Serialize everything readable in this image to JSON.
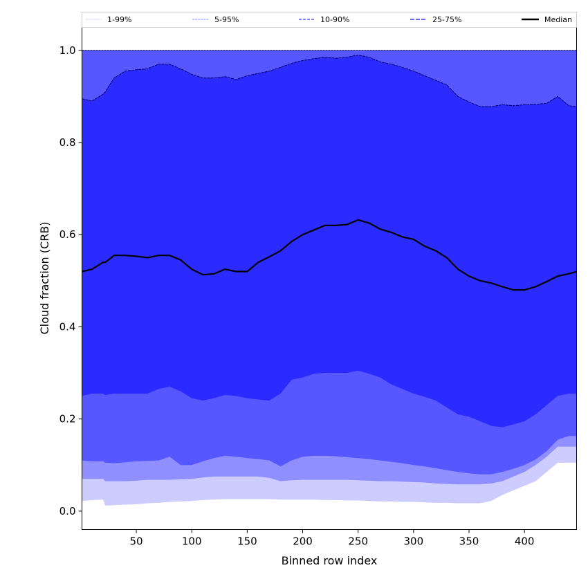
{
  "chart_data": {
    "type": "area",
    "title": "",
    "xlabel": "Binned row index",
    "ylabel": "Cloud fraction (CRB)",
    "xlim": [
      1,
      447
    ],
    "ylim": [
      -0.04,
      1.05
    ],
    "xticks": [
      50,
      100,
      150,
      200,
      250,
      300,
      350,
      400
    ],
    "yticks": [
      "0.0",
      "0.2",
      "0.4",
      "0.6",
      "0.8",
      "1.0"
    ],
    "legend": [
      "1-99%",
      "5-95%",
      "10-90%",
      "25-75%",
      "Median"
    ],
    "legend_placement": "top",
    "colors": {
      "b1_99": "#ccccff",
      "b5_95": "#8f8fff",
      "b10_90": "#5757ff",
      "b25_75": "#2b2bff",
      "median": "#000000"
    },
    "x": [
      1,
      10,
      20,
      22,
      30,
      40,
      50,
      60,
      70,
      80,
      90,
      100,
      110,
      120,
      130,
      140,
      150,
      160,
      170,
      180,
      190,
      200,
      210,
      220,
      230,
      240,
      250,
      260,
      270,
      280,
      290,
      300,
      310,
      320,
      330,
      340,
      350,
      360,
      370,
      380,
      390,
      400,
      410,
      420,
      430,
      440,
      447
    ],
    "series": [
      {
        "name": "p1",
        "values": [
          0.022,
          0.024,
          0.025,
          0.012,
          0.013,
          0.014,
          0.015,
          0.017,
          0.018,
          0.02,
          0.021,
          0.022,
          0.024,
          0.025,
          0.026,
          0.026,
          0.026,
          0.026,
          0.026,
          0.025,
          0.025,
          0.025,
          0.025,
          0.024,
          0.024,
          0.023,
          0.023,
          0.022,
          0.021,
          0.021,
          0.02,
          0.02,
          0.019,
          0.018,
          0.018,
          0.017,
          0.017,
          0.017,
          0.022,
          0.035,
          0.045,
          0.055,
          0.065,
          0.085,
          0.105,
          0.105,
          0.105
        ]
      },
      {
        "name": "p5",
        "values": [
          0.07,
          0.07,
          0.07,
          0.065,
          0.065,
          0.065,
          0.066,
          0.068,
          0.068,
          0.068,
          0.069,
          0.07,
          0.073,
          0.075,
          0.075,
          0.075,
          0.075,
          0.075,
          0.072,
          0.065,
          0.067,
          0.068,
          0.068,
          0.068,
          0.068,
          0.068,
          0.067,
          0.066,
          0.065,
          0.065,
          0.064,
          0.063,
          0.062,
          0.06,
          0.059,
          0.058,
          0.058,
          0.058,
          0.06,
          0.065,
          0.075,
          0.085,
          0.1,
          0.118,
          0.14,
          0.14,
          0.14
        ]
      },
      {
        "name": "p10",
        "values": [
          0.11,
          0.108,
          0.108,
          0.105,
          0.104,
          0.106,
          0.108,
          0.109,
          0.11,
          0.118,
          0.1,
          0.1,
          0.108,
          0.115,
          0.12,
          0.118,
          0.115,
          0.113,
          0.11,
          0.097,
          0.11,
          0.118,
          0.12,
          0.12,
          0.119,
          0.117,
          0.115,
          0.113,
          0.11,
          0.107,
          0.104,
          0.1,
          0.097,
          0.093,
          0.089,
          0.085,
          0.082,
          0.08,
          0.08,
          0.085,
          0.092,
          0.1,
          0.112,
          0.13,
          0.155,
          0.163,
          0.163
        ]
      },
      {
        "name": "p25",
        "values": [
          0.25,
          0.255,
          0.255,
          0.252,
          0.255,
          0.255,
          0.255,
          0.255,
          0.265,
          0.27,
          0.26,
          0.245,
          0.24,
          0.245,
          0.252,
          0.25,
          0.245,
          0.242,
          0.24,
          0.255,
          0.285,
          0.29,
          0.298,
          0.3,
          0.3,
          0.3,
          0.305,
          0.298,
          0.29,
          0.275,
          0.265,
          0.255,
          0.248,
          0.24,
          0.225,
          0.21,
          0.205,
          0.195,
          0.185,
          0.182,
          0.188,
          0.195,
          0.21,
          0.23,
          0.25,
          0.255,
          0.255
        ]
      },
      {
        "name": "Median",
        "values": [
          0.52,
          0.525,
          0.54,
          0.54,
          0.555,
          0.555,
          0.553,
          0.55,
          0.555,
          0.555,
          0.545,
          0.525,
          0.513,
          0.515,
          0.525,
          0.52,
          0.52,
          0.54,
          0.552,
          0.565,
          0.585,
          0.6,
          0.61,
          0.62,
          0.62,
          0.622,
          0.632,
          0.625,
          0.612,
          0.605,
          0.595,
          0.59,
          0.575,
          0.565,
          0.55,
          0.525,
          0.51,
          0.5,
          0.495,
          0.487,
          0.48,
          0.48,
          0.487,
          0.498,
          0.51,
          0.515,
          0.52
        ]
      },
      {
        "name": "p75",
        "values": [
          0.895,
          0.89,
          0.905,
          0.91,
          0.94,
          0.955,
          0.958,
          0.96,
          0.97,
          0.97,
          0.96,
          0.948,
          0.94,
          0.94,
          0.943,
          0.937,
          0.945,
          0.95,
          0.955,
          0.963,
          0.972,
          0.978,
          0.982,
          0.985,
          0.983,
          0.985,
          0.99,
          0.985,
          0.975,
          0.97,
          0.963,
          0.955,
          0.945,
          0.935,
          0.925,
          0.9,
          0.888,
          0.878,
          0.878,
          0.882,
          0.88,
          0.882,
          0.883,
          0.885,
          0.9,
          0.88,
          0.878
        ]
      },
      {
        "name": "p90",
        "constant": 1.0
      },
      {
        "name": "p95",
        "constant": 1.0
      },
      {
        "name": "p99",
        "constant": 1.0
      }
    ]
  }
}
